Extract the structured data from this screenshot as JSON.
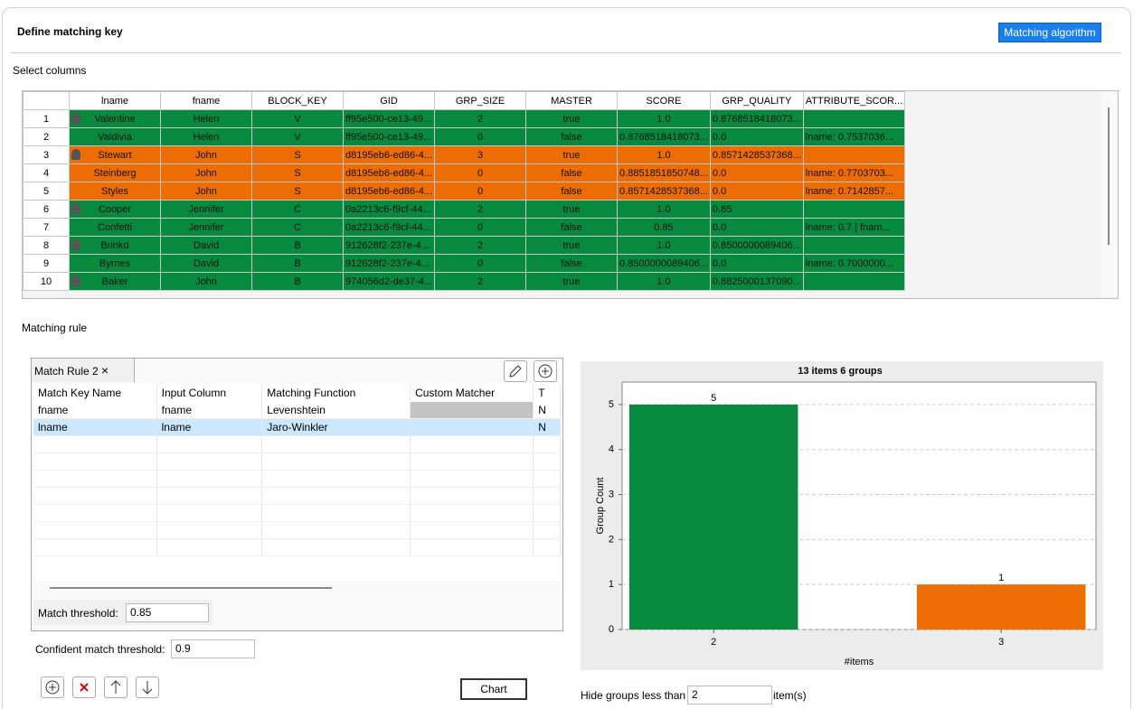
{
  "header": {
    "title": "Define matching key",
    "button": "Matching algorithm"
  },
  "select_columns": {
    "label": "Select columns",
    "columns": [
      "lname",
      "fname",
      "BLOCK_KEY",
      "GID",
      "GRP_SIZE",
      "MASTER",
      "SCORE",
      "GRP_QUALITY",
      "ATTRIBUTE_SCOR..."
    ],
    "row_numbers": [
      "1",
      "2",
      "3",
      "4",
      "5",
      "6",
      "7",
      "8",
      "9",
      "10"
    ],
    "row_colors": [
      "#078a3e",
      "#078a3e",
      "#ee6c04",
      "#ee6c04",
      "#ee6c04",
      "#078a3e",
      "#078a3e",
      "#078a3e",
      "#078a3e",
      "#078a3e"
    ],
    "rows": [
      [
        "Valentine",
        "Helen",
        "V",
        "ff95e500-ce13-49...",
        "2",
        "true",
        "1.0",
        "0.8768518418073...",
        null
      ],
      [
        "Valdivia",
        "Helen",
        "V",
        "ff95e500-ce13-49...",
        "0",
        "false",
        "0.8768518418073...",
        "0.0",
        "lname: 0.7537036..."
      ],
      [
        "Stewart",
        "John",
        "S",
        "d8195eb6-ed86-4...",
        "3",
        "true",
        "1.0",
        "0.8571428537368...",
        null
      ],
      [
        "Steinberg",
        "John",
        "S",
        "d8195eb6-ed86-4...",
        "0",
        "false",
        "0.8851851850748...",
        "0.0",
        "lname: 0.7703703..."
      ],
      [
        "Styles",
        "John",
        "S",
        "d8195eb6-ed86-4...",
        "0",
        "false",
        "0.8571428537368...",
        "0.0",
        "lname: 0.7142857..."
      ],
      [
        "Cooper",
        "Jennifer",
        "C",
        "0a2213c6-f9cf-44...",
        "2",
        "true",
        "1.0",
        "0.85",
        null
      ],
      [
        "Confetti",
        "Jennifer",
        "C",
        "0a2213c6-f9cf-44...",
        "0",
        "false",
        "0.85",
        "0.0",
        "lname: 0.7 | fnam..."
      ],
      [
        "Brinkd",
        "David",
        "B",
        "912628f2-237e-4...",
        "2",
        "true",
        "1.0",
        "0.8500000089406...",
        null
      ],
      [
        "Byrnes",
        "David",
        "B",
        "912628f2-237e-4...",
        "0",
        "false",
        "0.8500000089406...",
        "0.0",
        "lname: 0.7000000..."
      ],
      [
        "Baker",
        "John",
        "B",
        "974056d2-de37-4...",
        "2",
        "true",
        "1.0",
        "0.8825000137090...",
        null
      ]
    ]
  },
  "matching_rule": {
    "label": "Matching rule",
    "tab": "Match Rule 2",
    "columns": [
      "Match Key Name",
      "Input Column",
      "Matching Function",
      "Custom Matcher",
      "T"
    ],
    "rows": [
      [
        "fname",
        "fname",
        "Levenshtein",
        null,
        "N"
      ],
      [
        "lname",
        "lname",
        "Jaro-Winkler",
        null,
        "N"
      ]
    ],
    "match_threshold": {
      "label": "Match threshold:",
      "value": "0.85"
    },
    "confident_threshold": {
      "label": "Confident match threshold:",
      "value": "0.9"
    },
    "chart_button": "Chart"
  },
  "hide_groups": {
    "label": "Hide groups less than",
    "value": "2",
    "unit": "item(s)"
  },
  "chart_data": {
    "type": "bar",
    "title": "13 items 6 groups",
    "x_label": "#items",
    "y_label": "Group Count",
    "categories": [
      "2",
      "3"
    ],
    "values": [
      5,
      1
    ],
    "colors": [
      "#078a3e",
      "#ee6c04"
    ],
    "ylim": [
      0,
      5.5
    ],
    "yticks": [
      0,
      1,
      2,
      3,
      4,
      5
    ],
    "grid": true
  }
}
